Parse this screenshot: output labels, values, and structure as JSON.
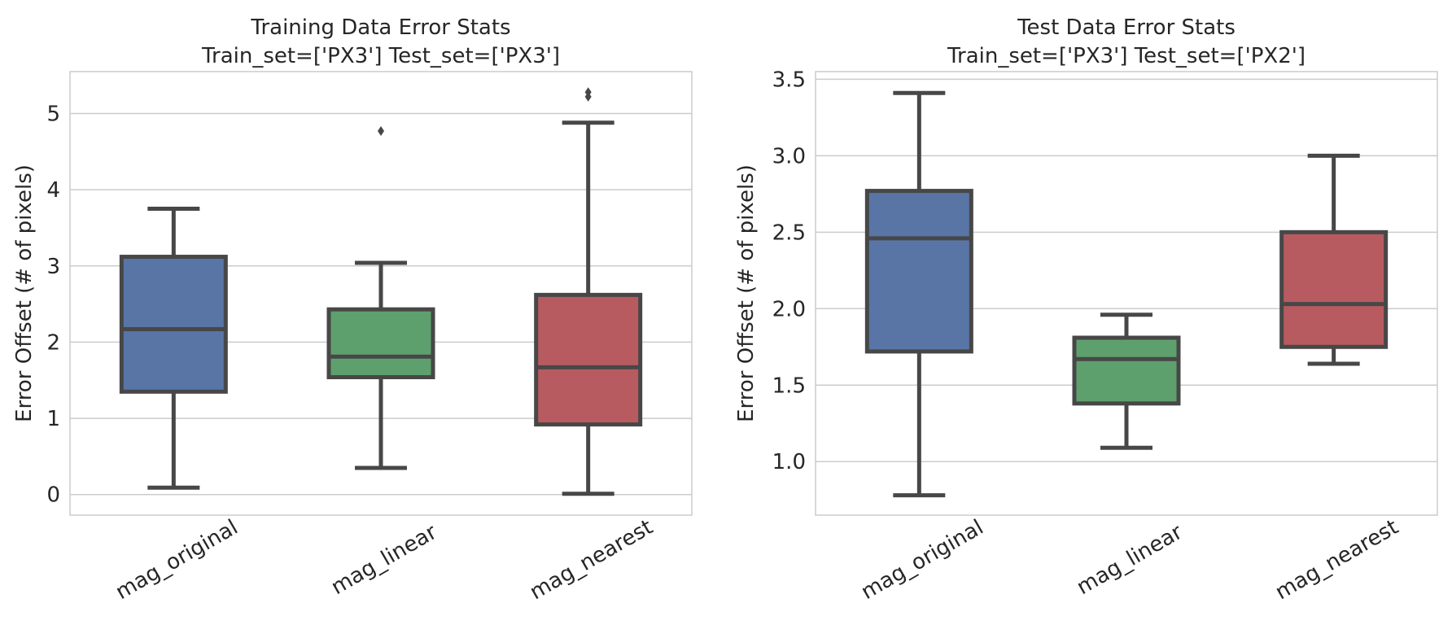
{
  "chart_data": [
    {
      "type": "box",
      "title": "Training Data Error Stats",
      "subtitle": "Train_set=['PX3'] Test_set=['PX3']",
      "xlabel": "",
      "ylabel": "Error Offset (# of pixels)",
      "ylim": [
        -0.27,
        5.55
      ],
      "yticks": [
        0,
        1,
        2,
        3,
        4,
        5
      ],
      "ytick_labels": [
        "0",
        "1",
        "2",
        "3",
        "4",
        "5"
      ],
      "grid": true,
      "categories": [
        "mag_original",
        "mag_linear",
        "mag_nearest"
      ],
      "colors": [
        "#5875a6",
        "#5ea06d",
        "#b75b60"
      ],
      "boxes": [
        {
          "whislo": 0.09,
          "q1": 1.35,
          "med": 2.17,
          "q3": 3.12,
          "whishi": 3.75,
          "fliers": []
        },
        {
          "whislo": 0.35,
          "q1": 1.54,
          "med": 1.81,
          "q3": 2.43,
          "whishi": 3.04,
          "fliers": [
            4.77
          ]
        },
        {
          "whislo": 0.01,
          "q1": 0.92,
          "med": 1.67,
          "q3": 2.62,
          "whishi": 4.88,
          "fliers": [
            5.22,
            5.28
          ]
        }
      ]
    },
    {
      "type": "box",
      "title": "Test Data Error Stats",
      "subtitle": "Train_set=['PX3'] Test_set=['PX2']",
      "xlabel": "",
      "ylabel": "Error Offset (# of pixels)",
      "ylim": [
        0.65,
        3.55
      ],
      "yticks": [
        1.0,
        1.5,
        2.0,
        2.5,
        3.0,
        3.5
      ],
      "ytick_labels": [
        "1.0",
        "1.5",
        "2.0",
        "2.5",
        "3.0",
        "3.5"
      ],
      "grid": true,
      "categories": [
        "mag_original",
        "mag_linear",
        "mag_nearest"
      ],
      "colors": [
        "#5875a6",
        "#5ea06d",
        "#b75b60"
      ],
      "boxes": [
        {
          "whislo": 0.78,
          "q1": 1.72,
          "med": 2.46,
          "q3": 2.77,
          "whishi": 3.41,
          "fliers": []
        },
        {
          "whislo": 1.09,
          "q1": 1.38,
          "med": 1.67,
          "q3": 1.81,
          "whishi": 1.96,
          "fliers": []
        },
        {
          "whislo": 1.64,
          "q1": 1.75,
          "med": 2.03,
          "q3": 2.5,
          "whishi": 3.0,
          "fliers": []
        }
      ]
    }
  ]
}
